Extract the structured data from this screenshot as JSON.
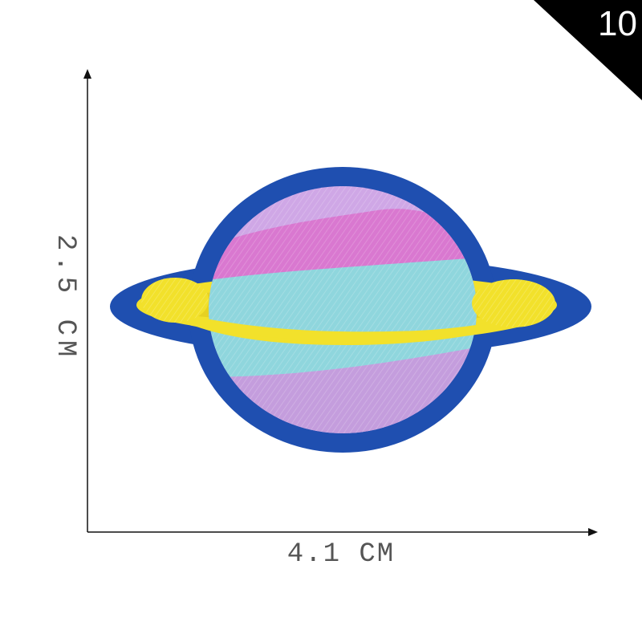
{
  "badge": {
    "number": "10"
  },
  "dimensions": {
    "width_label": "4.1 CM",
    "height_label": "2.5 CM"
  },
  "patch": {
    "subject": "planet-embroidered-patch"
  },
  "colors": {
    "border": "#1f4fb0",
    "planet_lavender": "#cfa7e6",
    "planet_pink": "#d978d0",
    "planet_cyan": "#8fd6dd",
    "ring_yellow": "#f2e12b",
    "badge_black": "#000000"
  }
}
